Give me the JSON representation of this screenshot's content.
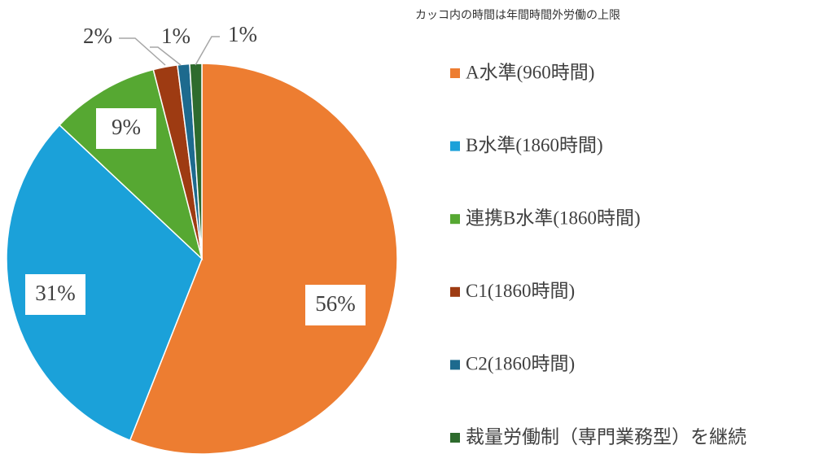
{
  "chart_data": {
    "type": "pie",
    "annotation": "カッコ内の時間は年間時間外労働の上限",
    "categories": [
      "A水準(960時間)",
      "B水準(1860時間)",
      "連携B水準(1860時間)",
      "C1(1860時間)",
      "C2(1860時間)",
      "裁量労働制（専門業務型）を継続"
    ],
    "values": [
      56,
      31,
      9,
      2,
      1,
      1
    ],
    "value_labels": [
      "56%",
      "31%",
      "9%",
      "2%",
      "1%",
      "1%"
    ],
    "colors": [
      "#ED7D31",
      "#1BA1D9",
      "#56A832",
      "#9E3B12",
      "#1D6A8E",
      "#2E6B2D"
    ]
  }
}
